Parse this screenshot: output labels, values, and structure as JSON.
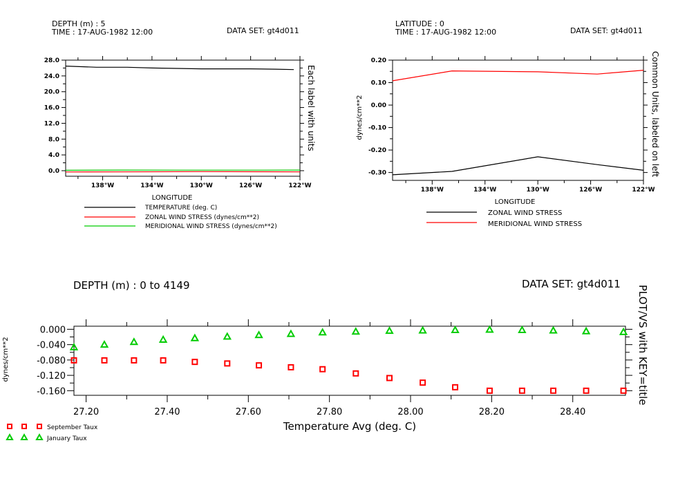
{
  "panel1": {
    "header": {
      "line1": "DEPTH (m) : 5",
      "line2": "TIME : 17-AUG-1982 12:00",
      "dataset": "DATA SET: gt4d011"
    },
    "right_label": "Each label with units",
    "xlabel": "LONGITUDE",
    "legend": [
      "TEMPERATURE (deg. C)",
      "ZONAL WIND STRESS (dynes/cm**2)",
      "MERIDIONAL WIND STRESS (dynes/cm**2)"
    ]
  },
  "panel2": {
    "header": {
      "line1": "LATITUDE : 0",
      "line2": "TIME : 17-AUG-1982 12:00",
      "dataset": "DATA SET: gt4d011"
    },
    "right_label": "Common Units, labeled on left",
    "xlabel": "LONGITUDE",
    "ylabel": "dynes/cm**2",
    "legend": [
      "ZONAL WIND STRESS",
      "MERIDIONAL WIND STRESS"
    ]
  },
  "panel3": {
    "header": {
      "line1": "DEPTH (m) : 0 to 4149",
      "dataset": "DATA SET: gt4d011"
    },
    "right_label": "PLOT/VS with KEY=title",
    "xlabel": "Temperature Avg (deg. C)",
    "ylabel": "dynes/cm**2",
    "legend": [
      "September Taux",
      "January Taux"
    ]
  },
  "colors": {
    "black": "#000000",
    "red": "#ff0000",
    "green": "#00cc00"
  },
  "chart_data": [
    {
      "type": "line",
      "x_label": "LONGITUDE",
      "xlim": [
        -141,
        -122
      ],
      "ylim": [
        -1.4,
        28.0
      ],
      "x_ticks": [
        -138,
        -134,
        -130,
        -126,
        -122
      ],
      "x_tick_labels": [
        "138°W",
        "134°W",
        "130°W",
        "126°W",
        "122°W"
      ],
      "y_ticks": [
        0,
        4,
        8,
        12,
        16,
        20,
        24,
        28
      ],
      "y_tick_labels": [
        "0.0",
        "4.0",
        "8.0",
        "12.0",
        "16.0",
        "20.0",
        "24.0",
        "28.0"
      ],
      "series": [
        {
          "name": "TEMPERATURE (deg. C)",
          "color": "#000000",
          "x": [
            -141,
            -138.5,
            -136,
            -134,
            -132,
            -130,
            -128,
            -126,
            -124,
            -122.5
          ],
          "y": [
            26.5,
            26.2,
            26.2,
            26.0,
            25.9,
            25.8,
            25.8,
            25.8,
            25.7,
            25.6
          ]
        },
        {
          "name": "ZONAL WIND STRESS (dynes/cm**2)",
          "color": "#ff0000",
          "x": [
            -141,
            -136.5,
            -130,
            -125.5,
            -122
          ],
          "y": [
            -0.31,
            -0.295,
            -0.23,
            -0.265,
            -0.29
          ]
        },
        {
          "name": "MERIDIONAL WIND STRESS (dynes/cm**2)",
          "color": "#00cc00",
          "x": [
            -141,
            -136.5,
            -130,
            -125.5,
            -122
          ],
          "y": [
            0.108,
            0.152,
            0.148,
            0.138,
            0.155
          ]
        }
      ]
    },
    {
      "type": "line",
      "x_label": "LONGITUDE",
      "y_label": "dynes/cm**2",
      "xlim": [
        -141,
        -122
      ],
      "ylim": [
        -0.335,
        0.2
      ],
      "x_ticks": [
        -138,
        -134,
        -130,
        -126,
        -122
      ],
      "x_tick_labels": [
        "138°W",
        "134°W",
        "130°W",
        "126°W",
        "122°W"
      ],
      "y_ticks": [
        -0.3,
        -0.2,
        -0.1,
        0.0,
        0.1,
        0.2
      ],
      "y_tick_labels": [
        "-0.30",
        "-0.20",
        "-0.10",
        "0.00",
        "0.10",
        "0.20"
      ],
      "series": [
        {
          "name": "ZONAL WIND STRESS",
          "color": "#000000",
          "x": [
            -141,
            -136.5,
            -130,
            -125.5,
            -122
          ],
          "y": [
            -0.31,
            -0.295,
            -0.23,
            -0.265,
            -0.29
          ]
        },
        {
          "name": "MERIDIONAL WIND STRESS",
          "color": "#ff0000",
          "x": [
            -141,
            -136.5,
            -130,
            -125.5,
            -122
          ],
          "y": [
            0.108,
            0.152,
            0.148,
            0.138,
            0.155
          ]
        }
      ]
    },
    {
      "type": "scatter",
      "x_label": "Temperature Avg (deg. C)",
      "y_label": "dynes/cm**2",
      "xlim": [
        27.17,
        28.53
      ],
      "ylim": [
        -0.172,
        0.008
      ],
      "x_ticks": [
        27.2,
        27.4,
        27.6,
        27.8,
        28.0,
        28.2,
        28.4
      ],
      "x_tick_labels": [
        "27.20",
        "27.40",
        "27.60",
        "27.80",
        "28.00",
        "28.20",
        "28.40"
      ],
      "y_ticks": [
        0.0,
        -0.04,
        -0.08,
        -0.12,
        -0.16
      ],
      "y_tick_labels": [
        "0.000",
        "-0.040",
        "-0.080",
        "-0.120",
        "-0.160"
      ],
      "series": [
        {
          "name": "September Taux",
          "color": "#ff0000",
          "marker": "square",
          "x": [
            27.17,
            27.245,
            27.318,
            27.39,
            27.468,
            27.548,
            27.626,
            27.705,
            27.783,
            27.865,
            27.948,
            28.03,
            28.11,
            28.195,
            28.275,
            28.352,
            28.433,
            28.525
          ],
          "y": [
            -0.081,
            -0.081,
            -0.081,
            -0.081,
            -0.085,
            -0.089,
            -0.094,
            -0.099,
            -0.104,
            -0.115,
            -0.127,
            -0.139,
            -0.151,
            -0.16,
            -0.16,
            -0.16,
            -0.16,
            -0.16
          ]
        },
        {
          "name": "January Taux",
          "color": "#00cc00",
          "marker": "triangle",
          "x": [
            27.17,
            27.245,
            27.318,
            27.39,
            27.468,
            27.548,
            27.626,
            27.705,
            27.783,
            27.865,
            27.948,
            28.03,
            28.11,
            28.195,
            28.275,
            28.352,
            28.433,
            28.525
          ],
          "y": [
            -0.047,
            -0.04,
            -0.033,
            -0.027,
            -0.023,
            -0.019,
            -0.015,
            -0.012,
            -0.008,
            -0.006,
            -0.004,
            -0.003,
            -0.002,
            -0.001,
            -0.002,
            -0.003,
            -0.005,
            -0.007
          ]
        }
      ]
    }
  ]
}
